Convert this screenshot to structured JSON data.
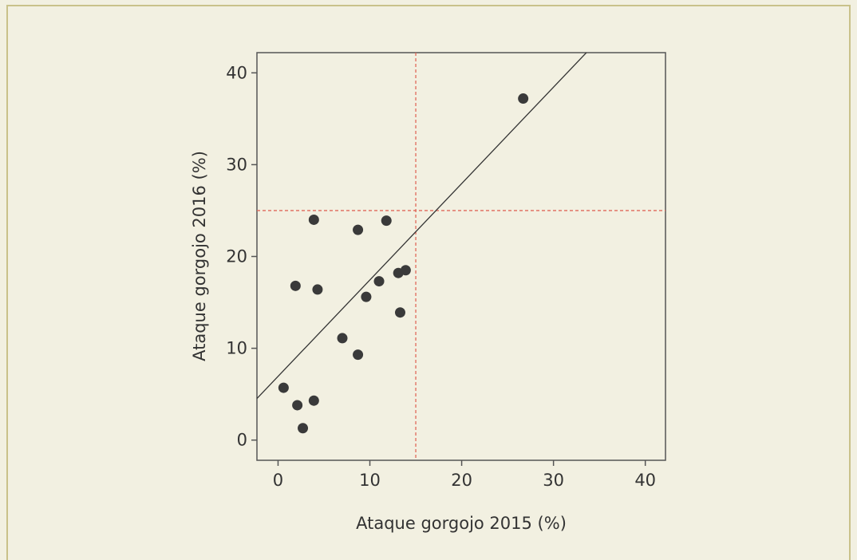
{
  "chart_data": {
    "type": "scatter",
    "xlabel": "Ataque gorgojo 2015 (%)",
    "ylabel": "Ataque gorgojo 2016 (%)",
    "xlim": [
      -2.3,
      42.2
    ],
    "ylim": [
      -2.2,
      42.2
    ],
    "xticks": [
      0,
      10,
      20,
      30,
      40
    ],
    "yticks": [
      0,
      10,
      20,
      30,
      40
    ],
    "grid": false,
    "points": [
      {
        "x": 0.6,
        "y": 5.7
      },
      {
        "x": 2.1,
        "y": 3.8
      },
      {
        "x": 2.7,
        "y": 1.3
      },
      {
        "x": 1.9,
        "y": 16.8
      },
      {
        "x": 3.9,
        "y": 4.3
      },
      {
        "x": 3.9,
        "y": 24.0
      },
      {
        "x": 4.3,
        "y": 16.4
      },
      {
        "x": 7.0,
        "y": 11.1
      },
      {
        "x": 8.7,
        "y": 9.3
      },
      {
        "x": 8.7,
        "y": 22.9
      },
      {
        "x": 9.6,
        "y": 15.6
      },
      {
        "x": 11.0,
        "y": 17.3
      },
      {
        "x": 11.8,
        "y": 23.9
      },
      {
        "x": 13.1,
        "y": 18.2
      },
      {
        "x": 13.3,
        "y": 13.9
      },
      {
        "x": 13.9,
        "y": 18.5
      },
      {
        "x": 26.7,
        "y": 37.2
      }
    ],
    "fit_line": {
      "slope": 1.05,
      "intercept": 6.94
    },
    "reference_lines": [
      {
        "axis": "x",
        "value": 15
      },
      {
        "axis": "y",
        "value": 25
      }
    ],
    "colors": {
      "background": "#f2f0e1",
      "point": "#3a3a3a",
      "fit_line": "#333333",
      "reference": "#e0685a",
      "frame": "#c9c18a"
    }
  }
}
